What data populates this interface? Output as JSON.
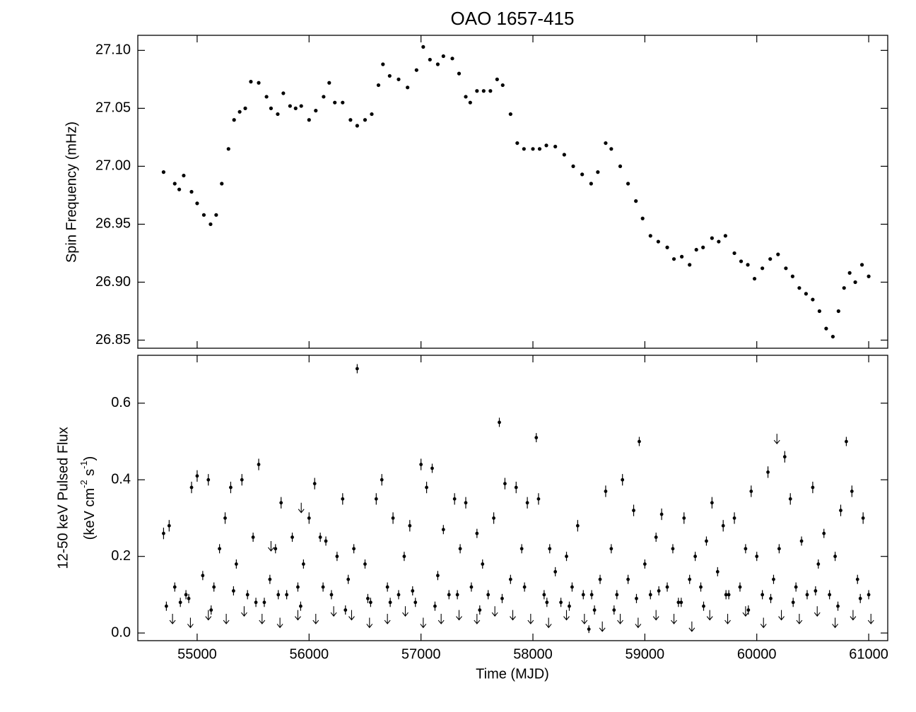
{
  "chart_data": [
    {
      "type": "scatter",
      "title": "OAO 1657-415",
      "ylabel": "Spin Frequency (mHz)",
      "color": "#000000",
      "ylim": [
        26.843,
        27.113
      ],
      "yticks": [
        {
          "value": 26.85,
          "label": "26.85"
        },
        {
          "value": 26.9,
          "label": "26.90"
        },
        {
          "value": 26.95,
          "label": "26.95"
        },
        {
          "value": 27.0,
          "label": "27.00"
        },
        {
          "value": 27.05,
          "label": "27.05"
        },
        {
          "value": 27.1,
          "label": "27.10"
        }
      ],
      "x": [
        54700,
        54800,
        54840,
        54880,
        54950,
        55000,
        55060,
        55120,
        55170,
        55220,
        55280,
        55330,
        55380,
        55430,
        55480,
        55550,
        55620,
        55660,
        55720,
        55770,
        55830,
        55880,
        55930,
        56000,
        56060,
        56130,
        56180,
        56230,
        56300,
        56370,
        56430,
        56500,
        56560,
        56620,
        56660,
        56720,
        56800,
        56880,
        56960,
        57020,
        57080,
        57150,
        57200,
        57280,
        57340,
        57400,
        57440,
        57500,
        57560,
        57620,
        57680,
        57730,
        57800,
        57860,
        57920,
        58000,
        58060,
        58120,
        58200,
        58280,
        58360,
        58440,
        58520,
        58580,
        58650,
        58700,
        58780,
        58850,
        58920,
        58980,
        59050,
        59120,
        59200,
        59260,
        59330,
        59400,
        59460,
        59520,
        59600,
        59660,
        59720,
        59800,
        59860,
        59920,
        59980,
        60050,
        60120,
        60190,
        60260,
        60320,
        60380,
        60440,
        60500,
        60560,
        60620,
        60680,
        60730,
        60780,
        60830,
        60880,
        60940,
        61000
      ],
      "values": [
        26.995,
        26.985,
        26.98,
        26.992,
        26.978,
        26.968,
        26.958,
        26.95,
        26.958,
        26.985,
        27.015,
        27.04,
        27.047,
        27.05,
        27.073,
        27.072,
        27.06,
        27.05,
        27.045,
        27.063,
        27.052,
        27.05,
        27.052,
        27.04,
        27.048,
        27.06,
        27.072,
        27.055,
        27.055,
        27.04,
        27.035,
        27.04,
        27.045,
        27.07,
        27.088,
        27.078,
        27.075,
        27.068,
        27.083,
        27.103,
        27.092,
        27.088,
        27.095,
        27.093,
        27.08,
        27.06,
        27.055,
        27.065,
        27.065,
        27.065,
        27.075,
        27.07,
        27.045,
        27.02,
        27.015,
        27.015,
        27.015,
        27.018,
        27.017,
        27.01,
        27.0,
        26.993,
        26.985,
        26.995,
        27.02,
        27.015,
        27.0,
        26.985,
        26.97,
        26.955,
        26.94,
        26.935,
        26.93,
        26.92,
        26.922,
        26.915,
        26.928,
        26.93,
        26.938,
        26.935,
        26.94,
        26.925,
        26.918,
        26.915,
        26.903,
        26.912,
        26.92,
        26.924,
        26.912,
        26.905,
        26.895,
        26.89,
        26.885,
        26.875,
        26.86,
        26.853,
        26.875,
        26.895,
        26.908,
        26.9,
        26.915,
        26.905
      ]
    },
    {
      "type": "errorbar",
      "xlabel": "Time (MJD)",
      "ylabel": "12-50 keV Pulsed Flux",
      "ylabel2": [
        "(keV cm",
        "-2",
        " s",
        "-1",
        ")"
      ],
      "xlim": [
        54470,
        61170
      ],
      "xticks": [
        55000,
        56000,
        57000,
        58000,
        59000,
        60000,
        61000
      ],
      "ylim": [
        -0.02,
        0.725
      ],
      "yticks": [
        {
          "value": 0,
          "label": "0.0"
        },
        0.2,
        0.4,
        0.6
      ],
      "series": [
        {
          "color": "#000000",
          "x": [
            54700,
            54750,
            54800,
            54850,
            54900,
            54950,
            55000,
            55050,
            55100,
            55150,
            55200,
            55250,
            55300,
            55350,
            55400,
            55450,
            55500,
            55550,
            55600,
            55650,
            55700,
            55750,
            55800,
            55850,
            55900,
            55950,
            56000,
            56050,
            56100,
            56150,
            56200,
            56250,
            56300,
            56350,
            56400,
            56430,
            56500,
            56550,
            56600,
            56650,
            56700,
            56750,
            56800,
            56850,
            56900,
            56950,
            57000,
            57050,
            57100,
            57150,
            57200,
            57250,
            57300,
            57350,
            57400,
            57450,
            57500,
            57550,
            57600,
            57650,
            57700,
            57750,
            57800,
            57850,
            57900,
            57950,
            58030,
            58050,
            58100,
            58150,
            58200,
            58250,
            58300,
            58350,
            58400,
            58450,
            58500,
            58550,
            58600,
            58650,
            58700,
            58750,
            58800,
            58850,
            58900,
            58950,
            59000,
            59050,
            59100,
            59150,
            59200,
            59250,
            59300,
            59350,
            59400,
            59450,
            59500,
            59550,
            59600,
            59650,
            59700,
            59750,
            59800,
            59850,
            59900,
            59950,
            60000,
            60050,
            60100,
            60150,
            60200,
            60250,
            60300,
            60350,
            60400,
            60450,
            60500,
            60550,
            60600,
            60650,
            60700,
            60750,
            60800,
            60850,
            60900,
            60950,
            61000,
            54725,
            54925,
            55125,
            55325,
            55525,
            55725,
            55925,
            56125,
            56325,
            56525,
            56725,
            56925,
            57125,
            57325,
            57525,
            57725,
            57925,
            58125,
            58325,
            58525,
            58725,
            58925,
            59125,
            59325,
            59525,
            59725,
            59925,
            60125,
            60325,
            60525,
            60725,
            60925
          ],
          "values": [
            0.26,
            0.28,
            0.12,
            0.08,
            0.1,
            0.38,
            0.41,
            0.15,
            0.4,
            0.12,
            0.22,
            0.3,
            0.38,
            0.18,
            0.4,
            0.1,
            0.25,
            0.44,
            0.08,
            0.14,
            0.22,
            0.34,
            0.1,
            0.25,
            0.12,
            0.18,
            0.3,
            0.39,
            0.25,
            0.24,
            0.1,
            0.2,
            0.35,
            0.14,
            0.22,
            0.69,
            0.18,
            0.08,
            0.35,
            0.4,
            0.12,
            0.3,
            0.1,
            0.2,
            0.28,
            0.08,
            0.44,
            0.38,
            0.43,
            0.15,
            0.27,
            0.1,
            0.35,
            0.22,
            0.34,
            0.12,
            0.26,
            0.18,
            0.1,
            0.3,
            0.55,
            0.39,
            0.14,
            0.38,
            0.22,
            0.34,
            0.51,
            0.35,
            0.1,
            0.22,
            0.16,
            0.08,
            0.2,
            0.12,
            0.28,
            0.1,
            0.01,
            0.06,
            0.14,
            0.37,
            0.22,
            0.1,
            0.4,
            0.14,
            0.32,
            0.5,
            0.18,
            0.1,
            0.25,
            0.31,
            0.12,
            0.22,
            0.08,
            0.3,
            0.14,
            0.2,
            0.12,
            0.24,
            0.34,
            0.16,
            0.28,
            0.1,
            0.3,
            0.12,
            0.22,
            0.37,
            0.2,
            0.1,
            0.42,
            0.14,
            0.22,
            0.46,
            0.35,
            0.12,
            0.24,
            0.1,
            0.38,
            0.18,
            0.26,
            0.1,
            0.2,
            0.32,
            0.5,
            0.37,
            0.14,
            0.3,
            0.1,
            0.07,
            0.09,
            0.06,
            0.11,
            0.08,
            0.1,
            0.07,
            0.12,
            0.06,
            0.09,
            0.08,
            0.11,
            0.07,
            0.1,
            0.06,
            0.09,
            0.12,
            0.08,
            0.07,
            0.1,
            0.06,
            0.09,
            0.11,
            0.08,
            0.07,
            0.1,
            0.06,
            0.09,
            0.08,
            0.11,
            0.07,
            0.09
          ],
          "errors": [
            0.015,
            0.015,
            0.012,
            0.012,
            0.012,
            0.015,
            0.015,
            0.012,
            0.015,
            0.012,
            0.012,
            0.015,
            0.015,
            0.012,
            0.015,
            0.012,
            0.012,
            0.015,
            0.012,
            0.012,
            0.012,
            0.015,
            0.012,
            0.012,
            0.012,
            0.012,
            0.015,
            0.015,
            0.012,
            0.012,
            0.012,
            0.012,
            0.015,
            0.012,
            0.012,
            0.012,
            0.012,
            0.012,
            0.015,
            0.015,
            0.012,
            0.015,
            0.012,
            0.012,
            0.015,
            0.012,
            0.015,
            0.015,
            0.012,
            0.012,
            0.012,
            0.012,
            0.015,
            0.012,
            0.015,
            0.012,
            0.012,
            0.012,
            0.012,
            0.015,
            0.012,
            0.015,
            0.012,
            0.015,
            0.012,
            0.015,
            0.012,
            0.015,
            0.012,
            0.012,
            0.012,
            0.012,
            0.012,
            0.012,
            0.015,
            0.012,
            0.01,
            0.012,
            0.012,
            0.015,
            0.012,
            0.012,
            0.015,
            0.012,
            0.015,
            0.012,
            0.012,
            0.012,
            0.012,
            0.015,
            0.012,
            0.012,
            0.012,
            0.015,
            0.012,
            0.012,
            0.012,
            0.012,
            0.015,
            0.012,
            0.015,
            0.012,
            0.015,
            0.012,
            0.012,
            0.015,
            0.012,
            0.012,
            0.015,
            0.012,
            0.012,
            0.015,
            0.015,
            0.012,
            0.012,
            0.012,
            0.015,
            0.012,
            0.012,
            0.012,
            0.012,
            0.015,
            0.012,
            0.015,
            0.012,
            0.015,
            0.012,
            0.012,
            0.012,
            0.012,
            0.012,
            0.012,
            0.012,
            0.012,
            0.012,
            0.012,
            0.012,
            0.012,
            0.012,
            0.012,
            0.012,
            0.012,
            0.012,
            0.012,
            0.012,
            0.012,
            0.012,
            0.012,
            0.012,
            0.012,
            0.012,
            0.012,
            0.012,
            0.012,
            0.012,
            0.012,
            0.012,
            0.012,
            0.012
          ]
        },
        {
          "type": "upper_limit",
          "color": "#000000",
          "x": [
            54780,
            54940,
            55100,
            55260,
            55420,
            55580,
            55740,
            55900,
            56060,
            56220,
            56380,
            56540,
            56700,
            56860,
            57020,
            57180,
            57340,
            57500,
            57660,
            57820,
            57980,
            58140,
            58300,
            58460,
            58620,
            58780,
            58940,
            59100,
            59260,
            59420,
            59580,
            59740,
            59900,
            60060,
            60220,
            60380,
            60540,
            60700,
            60860,
            61020,
            55930,
            60180,
            55660
          ],
          "values": [
            0.05,
            0.04,
            0.06,
            0.05,
            0.07,
            0.05,
            0.04,
            0.06,
            0.05,
            0.07,
            0.06,
            0.04,
            0.05,
            0.07,
            0.04,
            0.05,
            0.06,
            0.05,
            0.07,
            0.06,
            0.05,
            0.04,
            0.06,
            0.05,
            0.03,
            0.05,
            0.04,
            0.06,
            0.05,
            0.03,
            0.06,
            0.05,
            0.07,
            0.04,
            0.06,
            0.05,
            0.07,
            0.04,
            0.06,
            0.05,
            0.34,
            0.52,
            0.24
          ]
        }
      ]
    }
  ]
}
